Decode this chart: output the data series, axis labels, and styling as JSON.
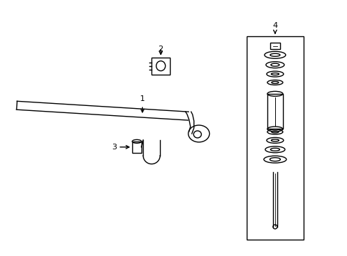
{
  "bg_color": "#ffffff",
  "line_color": "#000000",
  "label_1": "1",
  "label_2": "2",
  "label_3": "3",
  "label_4": "4",
  "figsize": [
    4.89,
    3.6
  ],
  "dpi": 100
}
